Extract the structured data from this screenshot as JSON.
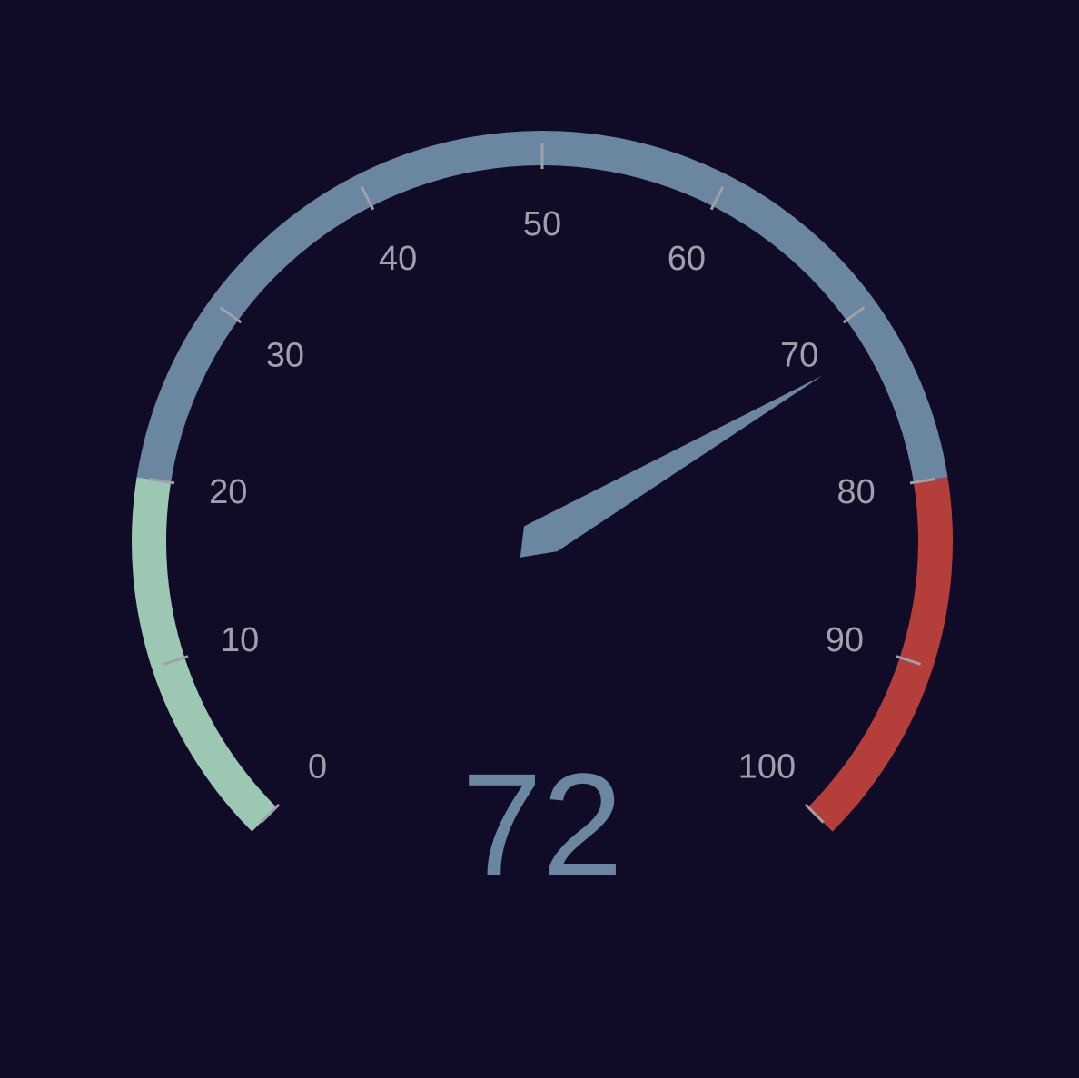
{
  "chart_data": {
    "type": "gauge",
    "min": 0,
    "max": 100,
    "value": 72,
    "value_label": "72",
    "tick_values": [
      0,
      10,
      20,
      30,
      40,
      50,
      60,
      70,
      80,
      90,
      100
    ],
    "tick_labels": [
      "0",
      "10",
      "20",
      "30",
      "40",
      "50",
      "60",
      "70",
      "80",
      "90",
      "100"
    ],
    "bands": [
      {
        "from": 0,
        "to": 20,
        "color": "#9bc7b3"
      },
      {
        "from": 20,
        "to": 80,
        "color": "#6a86a0"
      },
      {
        "from": 80,
        "to": 100,
        "color": "#b43f3a"
      }
    ],
    "needle_color": "#6a86a0",
    "tick_color": "#a0a0a8",
    "background": "#100c28"
  }
}
